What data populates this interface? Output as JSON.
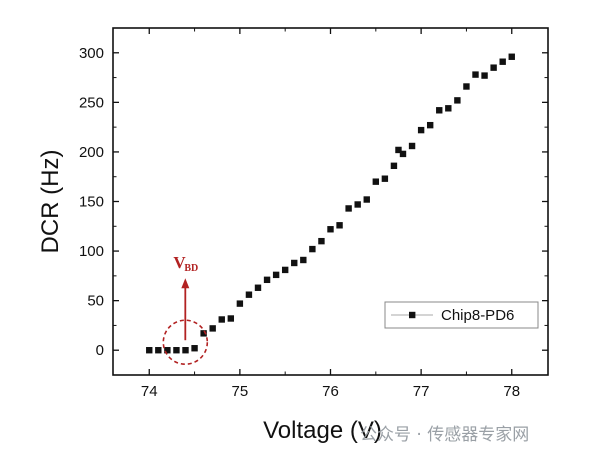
{
  "chart_data": {
    "type": "scatter",
    "xlabel": "Voltage (V)",
    "ylabel": "DCR (Hz)",
    "xlim": [
      73.6,
      78.4
    ],
    "ylim": [
      -25,
      325
    ],
    "xticks": [
      74,
      75,
      76,
      77,
      78
    ],
    "yticks": [
      0,
      50,
      100,
      150,
      200,
      250,
      300
    ],
    "grid": false,
    "legend_position": "right",
    "series": [
      {
        "name": "Chip8-PD6",
        "color": "#111111",
        "x": [
          74.0,
          74.1,
          74.2,
          74.3,
          74.4,
          74.5,
          74.6,
          74.7,
          74.8,
          74.9,
          75.0,
          75.1,
          75.2,
          75.3,
          75.4,
          75.5,
          75.6,
          75.7,
          75.8,
          75.9,
          76.0,
          76.1,
          76.2,
          76.3,
          76.4,
          76.5,
          76.6,
          76.7,
          76.75,
          76.8,
          76.9,
          77.0,
          77.1,
          77.2,
          77.3,
          77.4,
          77.5,
          77.6,
          77.7,
          77.8,
          77.9,
          78.0
        ],
        "y": [
          0,
          0,
          0,
          0,
          0,
          2,
          17,
          22,
          31,
          32,
          47,
          56,
          63,
          71,
          76,
          81,
          88,
          91,
          102,
          110,
          122,
          126,
          143,
          147,
          152,
          170,
          173,
          186,
          202,
          198,
          206,
          222,
          227,
          242,
          244,
          252,
          266,
          278,
          277,
          285,
          291,
          296
        ]
      }
    ],
    "annotations": [
      {
        "label": "V",
        "subscript": "BD",
        "x": 74.42,
        "y": 0,
        "color": "#b22222"
      }
    ]
  },
  "watermark": {
    "text": "公众号 · 传感器专家网"
  }
}
